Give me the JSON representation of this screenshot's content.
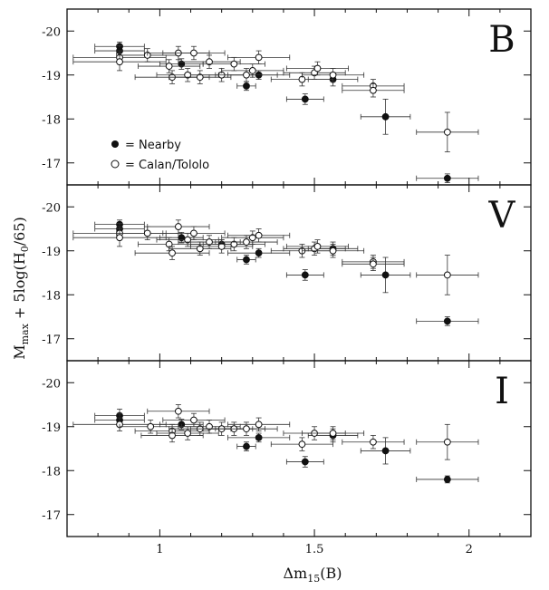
{
  "chart_data": {
    "type": "scatter",
    "xlabel_main": "Δm",
    "xlabel_sub": "15",
    "xlabel_tail": "(B)",
    "ylabel_main": "M",
    "ylabel_sub": "max",
    "ylabel_mid": " + 5log(H",
    "ylabel_sub2": "0",
    "ylabel_tail": "/65)",
    "xlim": [
      0.7,
      2.2
    ],
    "x_ticks": [
      1,
      1.5,
      2
    ],
    "x_tick_labels": [
      "1",
      "1.5",
      "2"
    ],
    "legend": [
      {
        "marker": "filled",
        "label": "= Nearby"
      },
      {
        "marker": "open",
        "label": "= Calan/Tololo"
      }
    ],
    "panels": [
      {
        "name": "B",
        "ylim": [
          -16.5,
          -20.5
        ],
        "y_ticks": [
          -20,
          -19,
          -18,
          -17
        ],
        "y_tick_labels": [
          "-20",
          "-19",
          "-18",
          "-17"
        ],
        "series": [
          {
            "name": "Nearby",
            "marker": "filled",
            "points": [
              {
                "x": 0.87,
                "y": -19.65,
                "xerr": 0.08,
                "yerr": 0.1
              },
              {
                "x": 0.87,
                "y": -19.55,
                "xerr": 0.08,
                "yerr": 0.12
              },
              {
                "x": 1.07,
                "y": -19.25,
                "xerr": 0.07,
                "yerr": 0.12
              },
              {
                "x": 1.28,
                "y": -18.75,
                "xerr": 0.03,
                "yerr": 0.1
              },
              {
                "x": 1.32,
                "y": -19.0,
                "xerr": 0.1,
                "yerr": 0.1
              },
              {
                "x": 1.47,
                "y": -18.45,
                "xerr": 0.06,
                "yerr": 0.12
              },
              {
                "x": 1.56,
                "y": -18.9,
                "xerr": 0.08,
                "yerr": 0.15
              },
              {
                "x": 1.73,
                "y": -18.05,
                "xerr": 0.08,
                "yerr": 0.4
              },
              {
                "x": 1.93,
                "y": -16.65,
                "xerr": 0.1,
                "yerr": 0.1
              }
            ]
          },
          {
            "name": "Calan/Tololo",
            "marker": "open",
            "points": [
              {
                "x": 0.87,
                "y": -19.4,
                "xerr": 0.15,
                "yerr": 0.15
              },
              {
                "x": 0.87,
                "y": -19.3,
                "xerr": 0.15,
                "yerr": 0.2
              },
              {
                "x": 0.96,
                "y": -19.45,
                "xerr": 0.1,
                "yerr": 0.15
              },
              {
                "x": 1.03,
                "y": -19.2,
                "xerr": 0.1,
                "yerr": 0.15
              },
              {
                "x": 1.04,
                "y": -18.95,
                "xerr": 0.12,
                "yerr": 0.15
              },
              {
                "x": 1.06,
                "y": -19.5,
                "xerr": 0.1,
                "yerr": 0.15
              },
              {
                "x": 1.09,
                "y": -19.0,
                "xerr": 0.1,
                "yerr": 0.15
              },
              {
                "x": 1.11,
                "y": -19.5,
                "xerr": 0.1,
                "yerr": 0.15
              },
              {
                "x": 1.13,
                "y": -18.95,
                "xerr": 0.1,
                "yerr": 0.15
              },
              {
                "x": 1.16,
                "y": -19.3,
                "xerr": 0.1,
                "yerr": 0.15
              },
              {
                "x": 1.2,
                "y": -19.0,
                "xerr": 0.1,
                "yerr": 0.15
              },
              {
                "x": 1.24,
                "y": -19.25,
                "xerr": 0.1,
                "yerr": 0.15
              },
              {
                "x": 1.28,
                "y": -19.0,
                "xerr": 0.1,
                "yerr": 0.15
              },
              {
                "x": 1.3,
                "y": -19.1,
                "xerr": 0.1,
                "yerr": 0.15
              },
              {
                "x": 1.32,
                "y": -19.4,
                "xerr": 0.1,
                "yerr": 0.15
              },
              {
                "x": 1.46,
                "y": -18.9,
                "xerr": 0.1,
                "yerr": 0.15
              },
              {
                "x": 1.5,
                "y": -19.05,
                "xerr": 0.1,
                "yerr": 0.15
              },
              {
                "x": 1.51,
                "y": -19.15,
                "xerr": 0.1,
                "yerr": 0.15
              },
              {
                "x": 1.56,
                "y": -19.0,
                "xerr": 0.1,
                "yerr": 0.15
              },
              {
                "x": 1.69,
                "y": -18.75,
                "xerr": 0.1,
                "yerr": 0.15
              },
              {
                "x": 1.69,
                "y": -18.65,
                "xerr": 0.1,
                "yerr": 0.15
              },
              {
                "x": 1.93,
                "y": -17.7,
                "xerr": 0.1,
                "yerr": 0.45
              }
            ]
          }
        ]
      },
      {
        "name": "V",
        "ylim": [
          -16.5,
          -20.5
        ],
        "y_ticks": [
          -20,
          -19,
          -18,
          -17
        ],
        "y_tick_labels": [
          "-20",
          "-19",
          "-18",
          "-17"
        ],
        "series": [
          {
            "name": "Nearby",
            "marker": "filled",
            "points": [
              {
                "x": 0.87,
                "y": -19.6,
                "xerr": 0.08,
                "yerr": 0.1
              },
              {
                "x": 0.87,
                "y": -19.5,
                "xerr": 0.08,
                "yerr": 0.12
              },
              {
                "x": 1.07,
                "y": -19.3,
                "xerr": 0.07,
                "yerr": 0.12
              },
              {
                "x": 1.2,
                "y": -19.15,
                "xerr": 0.1,
                "yerr": 0.1
              },
              {
                "x": 1.28,
                "y": -18.8,
                "xerr": 0.03,
                "yerr": 0.1
              },
              {
                "x": 1.32,
                "y": -18.95,
                "xerr": 0.1,
                "yerr": 0.1
              },
              {
                "x": 1.47,
                "y": -18.45,
                "xerr": 0.06,
                "yerr": 0.12
              },
              {
                "x": 1.56,
                "y": -19.05,
                "xerr": 0.08,
                "yerr": 0.15
              },
              {
                "x": 1.73,
                "y": -18.45,
                "xerr": 0.08,
                "yerr": 0.4
              },
              {
                "x": 1.93,
                "y": -17.4,
                "xerr": 0.1,
                "yerr": 0.1
              }
            ]
          },
          {
            "name": "Calan/Tololo",
            "marker": "open",
            "points": [
              {
                "x": 0.87,
                "y": -19.4,
                "xerr": 0.15,
                "yerr": 0.15
              },
              {
                "x": 0.87,
                "y": -19.3,
                "xerr": 0.15,
                "yerr": 0.2
              },
              {
                "x": 0.96,
                "y": -19.4,
                "xerr": 0.1,
                "yerr": 0.15
              },
              {
                "x": 1.03,
                "y": -19.15,
                "xerr": 0.1,
                "yerr": 0.15
              },
              {
                "x": 1.04,
                "y": -18.95,
                "xerr": 0.12,
                "yerr": 0.15
              },
              {
                "x": 1.06,
                "y": -19.55,
                "xerr": 0.1,
                "yerr": 0.15
              },
              {
                "x": 1.09,
                "y": -19.25,
                "xerr": 0.1,
                "yerr": 0.15
              },
              {
                "x": 1.11,
                "y": -19.4,
                "xerr": 0.1,
                "yerr": 0.15
              },
              {
                "x": 1.13,
                "y": -19.05,
                "xerr": 0.1,
                "yerr": 0.15
              },
              {
                "x": 1.16,
                "y": -19.2,
                "xerr": 0.1,
                "yerr": 0.15
              },
              {
                "x": 1.2,
                "y": -19.1,
                "xerr": 0.1,
                "yerr": 0.15
              },
              {
                "x": 1.24,
                "y": -19.15,
                "xerr": 0.1,
                "yerr": 0.15
              },
              {
                "x": 1.28,
                "y": -19.2,
                "xerr": 0.1,
                "yerr": 0.15
              },
              {
                "x": 1.3,
                "y": -19.3,
                "xerr": 0.1,
                "yerr": 0.15
              },
              {
                "x": 1.32,
                "y": -19.35,
                "xerr": 0.1,
                "yerr": 0.15
              },
              {
                "x": 1.46,
                "y": -19.0,
                "xerr": 0.1,
                "yerr": 0.15
              },
              {
                "x": 1.5,
                "y": -19.05,
                "xerr": 0.1,
                "yerr": 0.15
              },
              {
                "x": 1.51,
                "y": -19.1,
                "xerr": 0.1,
                "yerr": 0.15
              },
              {
                "x": 1.56,
                "y": -19.0,
                "xerr": 0.1,
                "yerr": 0.15
              },
              {
                "x": 1.69,
                "y": -18.75,
                "xerr": 0.1,
                "yerr": 0.15
              },
              {
                "x": 1.69,
                "y": -18.7,
                "xerr": 0.1,
                "yerr": 0.15
              },
              {
                "x": 1.93,
                "y": -18.45,
                "xerr": 0.1,
                "yerr": 0.45
              }
            ]
          }
        ]
      },
      {
        "name": "I",
        "ylim": [
          -16.5,
          -20.5
        ],
        "y_ticks": [
          -20,
          -19,
          -18,
          -17
        ],
        "y_tick_labels": [
          "-20",
          "-19",
          "-18",
          "-17"
        ],
        "series": [
          {
            "name": "Nearby",
            "marker": "filled",
            "points": [
              {
                "x": 0.87,
                "y": -19.25,
                "xerr": 0.08,
                "yerr": 0.15
              },
              {
                "x": 0.87,
                "y": -19.15,
                "xerr": 0.08,
                "yerr": 0.15
              },
              {
                "x": 1.07,
                "y": -19.05,
                "xerr": 0.07,
                "yerr": 0.12
              },
              {
                "x": 1.28,
                "y": -18.55,
                "xerr": 0.03,
                "yerr": 0.1
              },
              {
                "x": 1.32,
                "y": -18.75,
                "xerr": 0.1,
                "yerr": 0.1
              },
              {
                "x": 1.47,
                "y": -18.2,
                "xerr": 0.06,
                "yerr": 0.12
              },
              {
                "x": 1.56,
                "y": -18.8,
                "xerr": 0.08,
                "yerr": 0.15
              },
              {
                "x": 1.73,
                "y": -18.45,
                "xerr": 0.08,
                "yerr": 0.3
              },
              {
                "x": 1.93,
                "y": -17.8,
                "xerr": 0.1,
                "yerr": 0.08
              }
            ]
          },
          {
            "name": "Calan/Tololo",
            "marker": "open",
            "points": [
              {
                "x": 0.87,
                "y": -19.05,
                "xerr": 0.15,
                "yerr": 0.15
              },
              {
                "x": 0.97,
                "y": -19.0,
                "xerr": 0.1,
                "yerr": 0.15
              },
              {
                "x": 1.04,
                "y": -18.9,
                "xerr": 0.12,
                "yerr": 0.15
              },
              {
                "x": 1.04,
                "y": -18.8,
                "xerr": 0.1,
                "yerr": 0.15
              },
              {
                "x": 1.06,
                "y": -19.35,
                "xerr": 0.1,
                "yerr": 0.15
              },
              {
                "x": 1.09,
                "y": -18.85,
                "xerr": 0.1,
                "yerr": 0.15
              },
              {
                "x": 1.11,
                "y": -19.15,
                "xerr": 0.1,
                "yerr": 0.15
              },
              {
                "x": 1.13,
                "y": -18.95,
                "xerr": 0.1,
                "yerr": 0.15
              },
              {
                "x": 1.16,
                "y": -19.0,
                "xerr": 0.1,
                "yerr": 0.15
              },
              {
                "x": 1.2,
                "y": -18.95,
                "xerr": 0.1,
                "yerr": 0.15
              },
              {
                "x": 1.24,
                "y": -18.95,
                "xerr": 0.1,
                "yerr": 0.15
              },
              {
                "x": 1.28,
                "y": -18.95,
                "xerr": 0.1,
                "yerr": 0.15
              },
              {
                "x": 1.32,
                "y": -19.05,
                "xerr": 0.1,
                "yerr": 0.15
              },
              {
                "x": 1.46,
                "y": -18.6,
                "xerr": 0.1,
                "yerr": 0.15
              },
              {
                "x": 1.5,
                "y": -18.85,
                "xerr": 0.1,
                "yerr": 0.15
              },
              {
                "x": 1.56,
                "y": -18.85,
                "xerr": 0.1,
                "yerr": 0.15
              },
              {
                "x": 1.69,
                "y": -18.65,
                "xerr": 0.1,
                "yerr": 0.15
              },
              {
                "x": 1.93,
                "y": -18.65,
                "xerr": 0.1,
                "yerr": 0.4
              }
            ]
          }
        ]
      }
    ]
  }
}
